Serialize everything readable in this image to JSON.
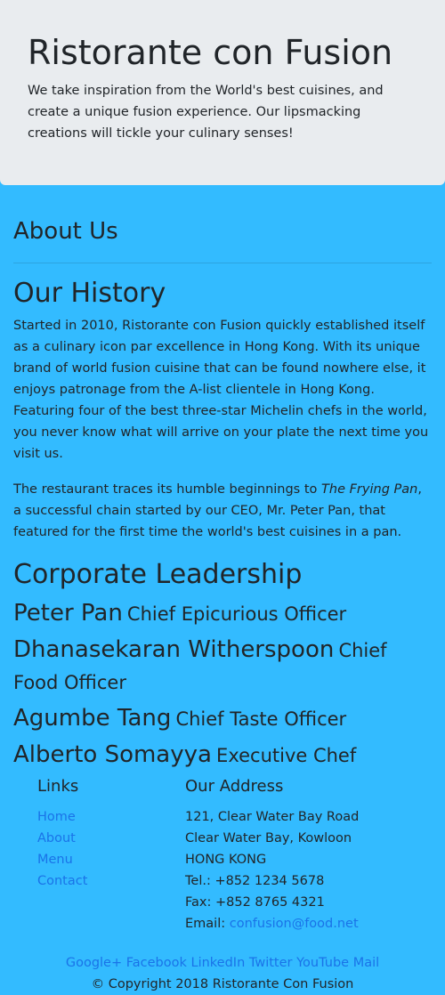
{
  "jumbotron": {
    "title": "Ristorante con Fusion",
    "text": "We take inspiration from the World's best cuisines, and create a unique fusion experience. Our lipsmacking creations will tickle your culinary senses!"
  },
  "about": {
    "heading": "About Us",
    "history_heading": "Our History",
    "para1": "Started in 2010, Ristorante con Fusion quickly established itself as a culinary icon par excellence in Hong Kong. With its unique brand of world fusion cuisine that can be found nowhere else, it enjoys patronage from the A-list clientele in Hong Kong. Featuring four of the best three-star Michelin chefs in the world, you never know what will arrive on your plate the next time you visit us.",
    "para2_before": "The restaurant traces its humble beginnings to ",
    "para2_italic": "The Frying Pan",
    "para2_after": ", a successful chain started by our CEO, Mr. Peter Pan, that featured for the first time the world's best cuisines in a pan."
  },
  "leadership": {
    "heading": "Corporate Leadership",
    "people": [
      {
        "name": "Peter Pan",
        "title": "Chief Epicurious Officer"
      },
      {
        "name": "Dhanasekaran Witherspoon",
        "title": "Chief Food Officer"
      },
      {
        "name": "Agumbe Tang",
        "title": "Chief Taste Officer"
      },
      {
        "name": "Alberto Somayya",
        "title": "Executive Chef"
      }
    ]
  },
  "footer": {
    "links_heading": "Links",
    "links": [
      "Home",
      "About",
      "Menu",
      "Contact"
    ],
    "address_heading": "Our Address",
    "address_lines": [
      "121, Clear Water Bay Road",
      "Clear Water Bay, Kowloon",
      "HONG KONG",
      "Tel.: +852 1234 5678",
      "Fax: +852 8765 4321"
    ],
    "email_label": "Email: ",
    "email": "confusion@food.net",
    "social": [
      "Google+",
      "Facebook",
      "LinkedIn",
      "Twitter",
      "YouTube",
      "Mail"
    ],
    "copyright": "© Copyright 2018 Ristorante Con Fusion"
  },
  "colors": {
    "background": "#33bbff",
    "jumbotron": "#e9ecef",
    "link": "#1a73e8"
  }
}
